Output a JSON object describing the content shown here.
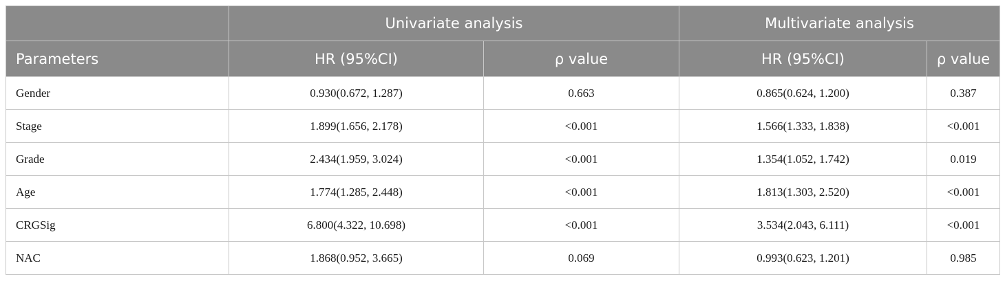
{
  "header": {
    "group_univariate": "Univariate analysis",
    "group_multivariate": "Multivariate analysis",
    "col_parameters": "Parameters",
    "col_uni_hr": "HR (95%CI)",
    "col_uni_p": "ρ value",
    "col_multi_hr": "HR (95%CI)",
    "col_multi_p": "ρ value"
  },
  "rows": [
    {
      "param": "Gender",
      "uni_hr": "0.930(0.672, 1.287)",
      "uni_p": "0.663",
      "multi_hr": "0.865(0.624, 1.200)",
      "multi_p": "0.387"
    },
    {
      "param": "Stage",
      "uni_hr": "1.899(1.656, 2.178)",
      "uni_p": "<0.001",
      "multi_hr": "1.566(1.333, 1.838)",
      "multi_p": "<0.001"
    },
    {
      "param": "Grade",
      "uni_hr": "2.434(1.959, 3.024)",
      "uni_p": "<0.001",
      "multi_hr": "1.354(1.052, 1.742)",
      "multi_p": "0.019"
    },
    {
      "param": "Age",
      "uni_hr": "1.774(1.285, 2.448)",
      "uni_p": "<0.001",
      "multi_hr": "1.813(1.303, 2.520)",
      "multi_p": "<0.001"
    },
    {
      "param": "CRGSig",
      "uni_hr": "6.800(4.322, 10.698)",
      "uni_p": "<0.001",
      "multi_hr": "3.534(2.043, 6.111)",
      "multi_p": "<0.001"
    },
    {
      "param": "NAC",
      "uni_hr": "1.868(0.952, 3.665)",
      "uni_p": "0.069",
      "multi_hr": "0.993(0.623, 1.201)",
      "multi_p": "0.985"
    }
  ]
}
